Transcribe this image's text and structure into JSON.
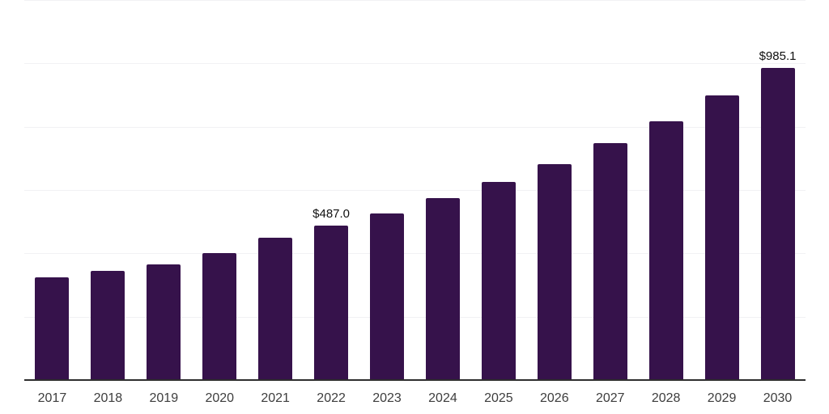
{
  "chart_data": {
    "type": "bar",
    "title": "",
    "xlabel": "",
    "ylabel": "",
    "categories": [
      "2017",
      "2018",
      "2019",
      "2020",
      "2021",
      "2022",
      "2023",
      "2024",
      "2025",
      "2026",
      "2027",
      "2028",
      "2029",
      "2030"
    ],
    "values": [
      325,
      345,
      366,
      401,
      450,
      487.0,
      527,
      575,
      626,
      682,
      747,
      816,
      898,
      985.1
    ],
    "data_labels": [
      {
        "category": "2022",
        "text": "$487.0"
      },
      {
        "category": "2030",
        "text": "$985.1"
      }
    ],
    "ylim": [
      0,
      1200
    ],
    "gridline_step": 200,
    "grid": true,
    "legend": "none",
    "colors": {
      "bar": "#36124b",
      "axis_line": "#2e2e2e",
      "gridline": "#f1f1f4",
      "tick_label": "#3d3d3d",
      "data_label": "#101010",
      "background": "#ffffff"
    }
  }
}
